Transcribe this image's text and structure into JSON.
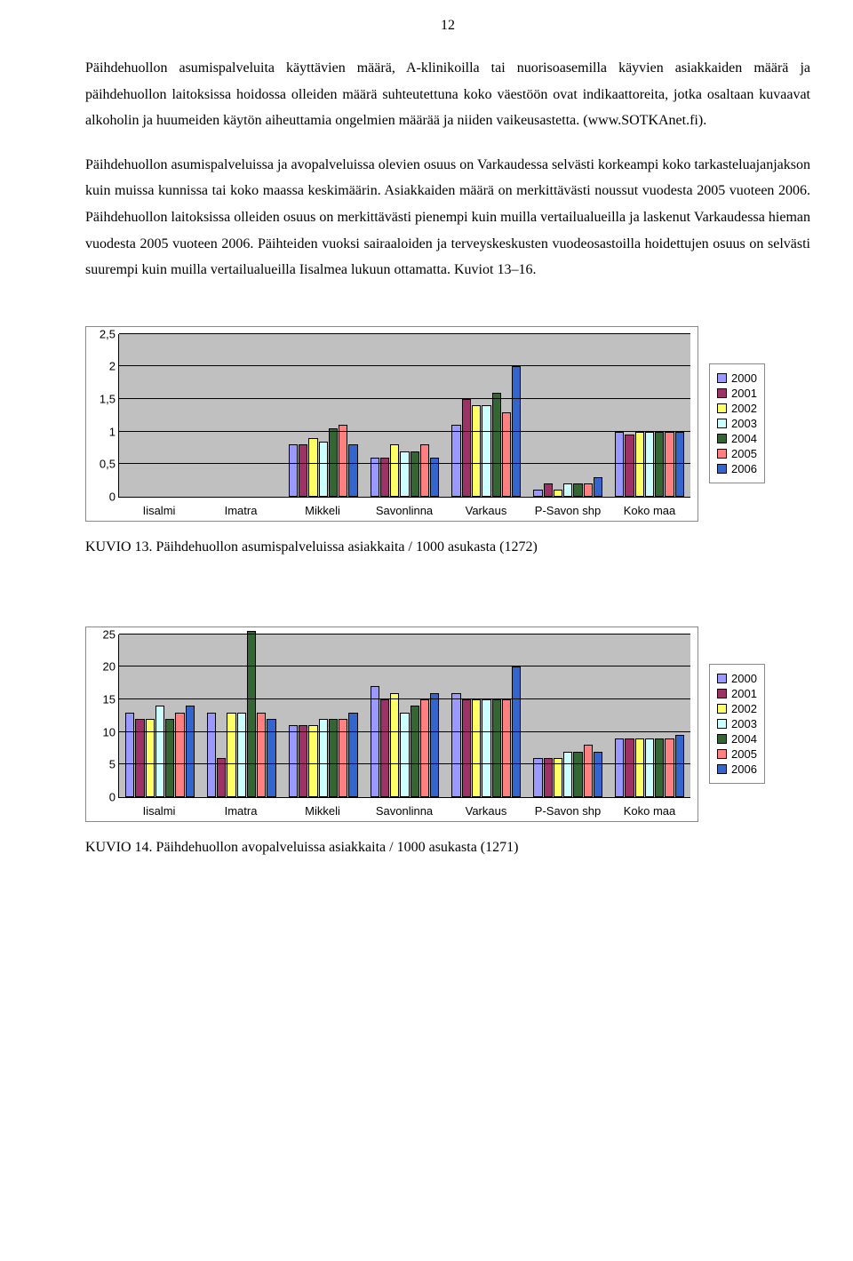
{
  "page_number": "12",
  "paragraphs": {
    "p1": "Päihdehuollon asumispalveluita käyttävien määrä, A-klinikoilla tai nuorisoasemilla käyvien asiakkaiden määrä ja päihdehuollon laitoksissa hoidossa olleiden määrä suhteutettuna koko väestöön ovat indikaattoreita, jotka osaltaan kuvaavat alkoholin ja huumeiden käytön aiheuttamia ongelmien määrää ja niiden vaikeusastetta. (www.SOTKAnet.fi).",
    "p2": "Päihdehuollon asumispalveluissa ja avopalveluissa olevien osuus on Varkaudessa selvästi korkeampi koko tarkasteluajanjakson kuin muissa kunnissa tai koko maassa keskimäärin. Asiakkaiden määrä on merkittävästi noussut vuodesta 2005 vuoteen 2006. Päihdehuollon laitoksissa olleiden osuus on merkittävästi pienempi kuin muilla vertailualueilla ja laskenut Varkaudessa hieman vuodesta 2005 vuoteen 2006. Päihteiden vuoksi sairaaloiden ja terveyskeskusten vuodeosastoilla hoidettujen osuus on selvästi suurempi kuin muilla vertailualueilla Iisalmea lukuun ottamatta.  Kuviot 13–16."
  },
  "legend_years": [
    "2000",
    "2001",
    "2002",
    "2003",
    "2004",
    "2005",
    "2006"
  ],
  "series_colors": [
    "#9a99ff",
    "#9c3265",
    "#ffff66",
    "#ccffff",
    "#336633",
    "#ff8080",
    "#3366cc"
  ],
  "plot_bg": "#c0c0c0",
  "chart13": {
    "categories": [
      "Iisalmi",
      "Imatra",
      "Mikkeli",
      "Savonlinna",
      "Varkaus",
      "P-Savon shp",
      "Koko maa"
    ],
    "y_ticks": [
      "0",
      "0,5",
      "1",
      "1,5",
      "2",
      "2,5"
    ],
    "y_max": 2.5,
    "values": {
      "Iisalmi": [
        0,
        0,
        0,
        0,
        0,
        0,
        0
      ],
      "Imatra": [
        0,
        0,
        0,
        0,
        0,
        0,
        0
      ],
      "Mikkeli": [
        0.8,
        0.8,
        0.9,
        0.85,
        1.05,
        1.1,
        0.8
      ],
      "Savonlinna": [
        0.6,
        0.6,
        0.8,
        0.7,
        0.7,
        0.8,
        0.6
      ],
      "Varkaus": [
        1.1,
        1.5,
        1.4,
        1.4,
        1.6,
        1.3,
        2.0
      ],
      "P-Savon shp": [
        0.1,
        0.2,
        0.1,
        0.2,
        0.2,
        0.2,
        0.3
      ],
      "Koko maa": [
        1.0,
        0.95,
        1.0,
        1.0,
        1.0,
        1.0,
        1.0
      ]
    },
    "caption": "KUVIO 13. Päihdehuollon asumispalveluissa asiakkaita / 1000 asukasta (1272)"
  },
  "chart14": {
    "categories": [
      "Iisalmi",
      "Imatra",
      "Mikkeli",
      "Savonlinna",
      "Varkaus",
      "P-Savon shp",
      "Koko maa"
    ],
    "y_ticks": [
      "0",
      "5",
      "10",
      "15",
      "20",
      "25"
    ],
    "y_max": 25,
    "values": {
      "Iisalmi": [
        13,
        12,
        12,
        14,
        12,
        13,
        14
      ],
      "Imatra": [
        13,
        6,
        13,
        13,
        25.5,
        13,
        12
      ],
      "Mikkeli": [
        11,
        11,
        11,
        12,
        12,
        12,
        13
      ],
      "Savonlinna": [
        17,
        15,
        16,
        13,
        14,
        15,
        16
      ],
      "Varkaus": [
        16,
        15,
        15,
        15,
        15,
        15,
        20
      ],
      "P-Savon shp": [
        6,
        6,
        6,
        7,
        7,
        8,
        7
      ],
      "Koko maa": [
        9,
        9,
        9,
        9,
        9,
        9,
        9.5
      ]
    },
    "caption": "KUVIO 14. Päihdehuollon avopalveluissa asiakkaita / 1000 asukasta (1271)"
  }
}
